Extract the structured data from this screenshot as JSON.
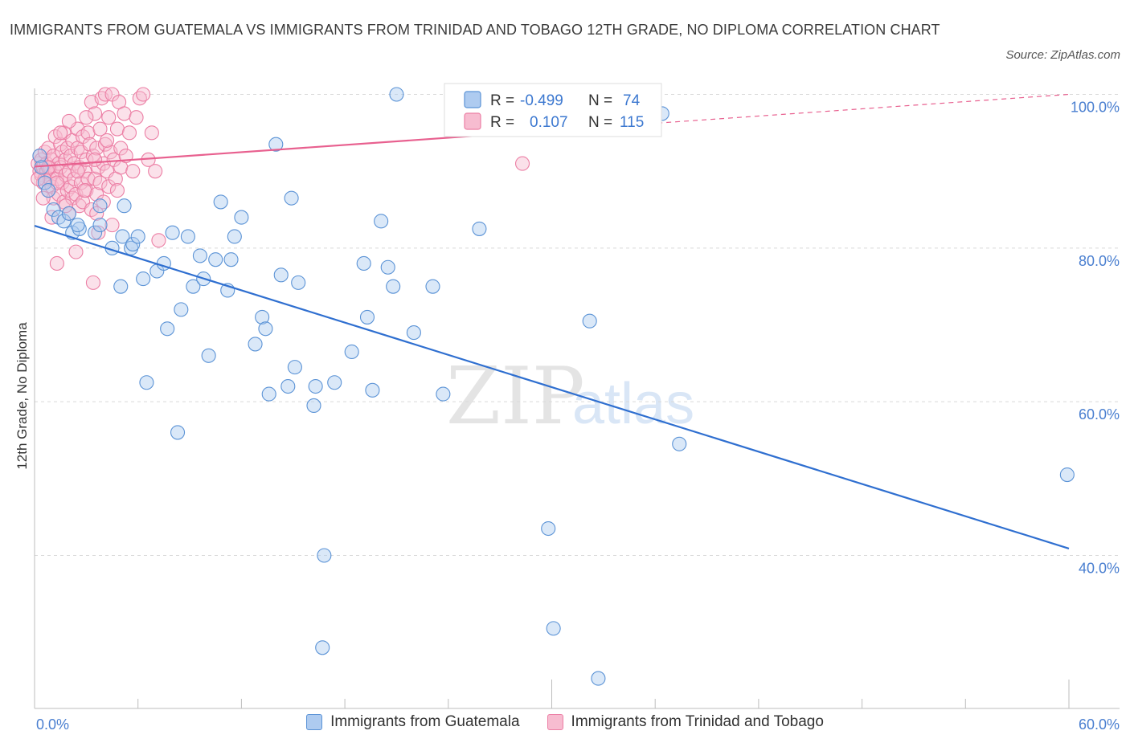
{
  "title": "IMMIGRANTS FROM GUATEMALA VS IMMIGRANTS FROM TRINIDAD AND TOBAGO 12TH GRADE, NO DIPLOMA CORRELATION CHART",
  "source": "Source: ZipAtlas.com",
  "watermark": {
    "zip": "ZIP",
    "atlas": "atlas"
  },
  "colors": {
    "blue_fill": "#aecbf0",
    "blue_stroke": "#5b93d6",
    "blue_line": "#2f6fd0",
    "pink_fill": "#f7bcd0",
    "pink_stroke": "#ec7fa5",
    "pink_line": "#e8608f",
    "axis_label": "#4a7fd0",
    "grid": "#d9d9d9"
  },
  "legend": {
    "rows": [
      {
        "r_label": "R =",
        "r_value": "-0.499",
        "n_label": "N =",
        "n_value": "74"
      },
      {
        "r_label": "R =",
        "r_value": "0.107",
        "n_label": "N =",
        "n_value": "115"
      }
    ]
  },
  "bottom_legend": {
    "items": [
      {
        "label": "Immigrants from Guatemala"
      },
      {
        "label": "Immigrants from Trinidad and Tobago"
      }
    ]
  },
  "chart_data": {
    "type": "scatter",
    "xlabel": "",
    "ylabel": "12th Grade, No Diploma",
    "xlim": [
      0,
      60
    ],
    "ylim": [
      20,
      100
    ],
    "x_tick_labels": [
      {
        "value": 0,
        "label": "0.0%"
      },
      {
        "value": 60,
        "label": "60.0%"
      }
    ],
    "y_tick_labels": [
      {
        "value": 100,
        "label": "100.0%"
      },
      {
        "value": 80,
        "label": "80.0%"
      },
      {
        "value": 60,
        "label": "60.0%"
      },
      {
        "value": 40,
        "label": "40.0%"
      }
    ],
    "y_gridlines": [
      100,
      80,
      60,
      40
    ],
    "x_ticks": [
      0,
      6,
      12,
      18,
      24,
      30,
      36,
      42,
      48,
      54,
      60
    ],
    "series": [
      {
        "name": "Immigrants from Guatemala",
        "r": -0.499,
        "n": 74,
        "trend": {
          "x0": 0,
          "y0": 82.9,
          "x1": 60,
          "y1": 40.9
        },
        "points": [
          [
            0.3,
            92.0
          ],
          [
            0.4,
            90.5
          ],
          [
            0.6,
            88.5
          ],
          [
            0.8,
            87.5
          ],
          [
            1.1,
            85.0
          ],
          [
            1.4,
            84.0
          ],
          [
            1.7,
            83.5
          ],
          [
            2.0,
            84.5
          ],
          [
            2.2,
            82.0
          ],
          [
            2.6,
            82.5
          ],
          [
            3.5,
            82.0
          ],
          [
            3.8,
            83.0
          ],
          [
            3.8,
            85.5
          ],
          [
            5.0,
            75.0
          ],
          [
            4.5,
            80.0
          ],
          [
            5.1,
            81.5
          ],
          [
            5.6,
            80.0
          ],
          [
            5.2,
            85.5
          ],
          [
            5.7,
            80.5
          ],
          [
            6.0,
            81.5
          ],
          [
            6.3,
            76.0
          ],
          [
            6.5,
            62.5
          ],
          [
            7.1,
            77.0
          ],
          [
            7.5,
            78.0
          ],
          [
            7.7,
            69.5
          ],
          [
            8.0,
            82.0
          ],
          [
            8.3,
            56.0
          ],
          [
            8.5,
            72.0
          ],
          [
            8.9,
            81.5
          ],
          [
            9.2,
            75.0
          ],
          [
            9.6,
            79.0
          ],
          [
            9.8,
            76.0
          ],
          [
            10.1,
            66.0
          ],
          [
            10.5,
            78.5
          ],
          [
            10.8,
            86.0
          ],
          [
            11.2,
            74.5
          ],
          [
            11.4,
            78.5
          ],
          [
            11.6,
            81.5
          ],
          [
            12.0,
            84.0
          ],
          [
            12.8,
            67.5
          ],
          [
            13.2,
            71.0
          ],
          [
            13.4,
            69.5
          ],
          [
            13.6,
            61.0
          ],
          [
            14.0,
            93.5
          ],
          [
            14.3,
            76.5
          ],
          [
            14.7,
            62.0
          ],
          [
            14.9,
            86.5
          ],
          [
            15.1,
            64.5
          ],
          [
            15.3,
            75.5
          ],
          [
            16.2,
            59.5
          ],
          [
            16.3,
            62.0
          ],
          [
            16.7,
            28.0
          ],
          [
            16.8,
            40.0
          ],
          [
            17.4,
            62.5
          ],
          [
            18.4,
            66.5
          ],
          [
            19.1,
            78.0
          ],
          [
            19.3,
            71.0
          ],
          [
            19.6,
            61.5
          ],
          [
            20.1,
            83.5
          ],
          [
            20.5,
            77.5
          ],
          [
            20.8,
            75.0
          ],
          [
            21.0,
            100.0
          ],
          [
            22.0,
            69.0
          ],
          [
            23.1,
            75.0
          ],
          [
            23.7,
            61.0
          ],
          [
            25.8,
            82.5
          ],
          [
            29.8,
            43.5
          ],
          [
            30.1,
            30.5
          ],
          [
            32.2,
            70.5
          ],
          [
            32.7,
            24.0
          ],
          [
            36.4,
            97.5
          ],
          [
            37.4,
            54.5
          ],
          [
            59.9,
            50.5
          ],
          [
            2.5,
            83.0
          ]
        ]
      },
      {
        "name": "Immigrants from Trinidad and Tobago",
        "r": 0.107,
        "n": 115,
        "trend": {
          "x0": 0,
          "y0": 90.6,
          "x1": 30,
          "y1": 95.3,
          "dash_x1": 60,
          "dash_y1": 100.0
        },
        "points": [
          [
            0.2,
            91.0
          ],
          [
            0.3,
            90.0
          ],
          [
            0.3,
            92.0
          ],
          [
            0.4,
            89.5
          ],
          [
            0.4,
            91.5
          ],
          [
            0.5,
            90.5
          ],
          [
            0.5,
            88.5
          ],
          [
            0.6,
            92.5
          ],
          [
            0.6,
            89.0
          ],
          [
            0.7,
            91.0
          ],
          [
            0.7,
            90.0
          ],
          [
            0.8,
            93.0
          ],
          [
            0.8,
            87.5
          ],
          [
            0.9,
            90.5
          ],
          [
            0.9,
            89.0
          ],
          [
            1.0,
            91.5
          ],
          [
            1.0,
            88.0
          ],
          [
            1.1,
            92.0
          ],
          [
            1.1,
            86.5
          ],
          [
            1.2,
            90.0
          ],
          [
            1.2,
            94.5
          ],
          [
            1.3,
            89.0
          ],
          [
            1.3,
            78.0
          ],
          [
            1.4,
            91.0
          ],
          [
            1.4,
            87.0
          ],
          [
            1.5,
            93.5
          ],
          [
            1.5,
            90.5
          ],
          [
            1.6,
            88.5
          ],
          [
            1.6,
            92.5
          ],
          [
            1.7,
            86.0
          ],
          [
            1.7,
            95.0
          ],
          [
            1.8,
            89.5
          ],
          [
            1.8,
            91.5
          ],
          [
            1.9,
            87.5
          ],
          [
            1.9,
            93.0
          ],
          [
            2.0,
            90.0
          ],
          [
            2.0,
            84.5
          ],
          [
            2.1,
            88.0
          ],
          [
            2.1,
            92.0
          ],
          [
            2.2,
            86.5
          ],
          [
            2.2,
            94.0
          ],
          [
            2.3,
            89.0
          ],
          [
            2.3,
            91.0
          ],
          [
            2.4,
            79.5
          ],
          [
            2.4,
            87.0
          ],
          [
            2.5,
            93.0
          ],
          [
            2.5,
            95.5
          ],
          [
            2.6,
            85.5
          ],
          [
            2.6,
            90.5
          ],
          [
            2.7,
            88.5
          ],
          [
            2.7,
            92.5
          ],
          [
            2.8,
            86.0
          ],
          [
            2.8,
            94.5
          ],
          [
            2.9,
            90.0
          ],
          [
            3.0,
            87.5
          ],
          [
            3.0,
            91.5
          ],
          [
            3.1,
            95.0
          ],
          [
            3.1,
            89.0
          ],
          [
            3.2,
            93.5
          ],
          [
            3.3,
            99.0
          ],
          [
            3.3,
            85.0
          ],
          [
            3.4,
            75.5
          ],
          [
            3.4,
            92.0
          ],
          [
            3.5,
            89.0
          ],
          [
            3.5,
            97.5
          ],
          [
            3.6,
            87.0
          ],
          [
            3.6,
            93.0
          ],
          [
            3.7,
            90.5
          ],
          [
            3.7,
            82.0
          ],
          [
            3.8,
            95.5
          ],
          [
            3.8,
            88.5
          ],
          [
            3.9,
            99.5
          ],
          [
            4.0,
            91.0
          ],
          [
            4.0,
            86.0
          ],
          [
            4.1,
            100.0
          ],
          [
            4.1,
            93.5
          ],
          [
            4.2,
            90.0
          ],
          [
            4.3,
            97.0
          ],
          [
            4.3,
            88.0
          ],
          [
            4.4,
            92.5
          ],
          [
            4.5,
            100.0
          ],
          [
            4.5,
            83.0
          ],
          [
            4.6,
            91.5
          ],
          [
            4.7,
            89.0
          ],
          [
            4.8,
            95.5
          ],
          [
            4.8,
            87.5
          ],
          [
            4.9,
            99.0
          ],
          [
            5.0,
            93.0
          ],
          [
            5.0,
            90.5
          ],
          [
            5.2,
            97.5
          ],
          [
            5.3,
            92.0
          ],
          [
            5.5,
            95.0
          ],
          [
            5.7,
            90.0
          ],
          [
            5.9,
            97.0
          ],
          [
            6.1,
            99.5
          ],
          [
            6.3,
            100.0
          ],
          [
            6.6,
            91.5
          ],
          [
            6.8,
            95.0
          ],
          [
            7.0,
            90.0
          ],
          [
            7.2,
            81.0
          ],
          [
            28.3,
            91.0
          ],
          [
            0.5,
            86.5
          ],
          [
            1.0,
            84.0
          ],
          [
            2.0,
            96.5
          ],
          [
            3.0,
            97.0
          ],
          [
            3.5,
            91.5
          ],
          [
            4.2,
            94.0
          ],
          [
            1.5,
            95.0
          ],
          [
            2.5,
            90.0
          ],
          [
            0.8,
            90.5
          ],
          [
            1.3,
            88.5
          ],
          [
            1.8,
            85.5
          ],
          [
            2.9,
            87.5
          ],
          [
            3.6,
            84.5
          ],
          [
            0.2,
            89.0
          ]
        ]
      }
    ]
  }
}
